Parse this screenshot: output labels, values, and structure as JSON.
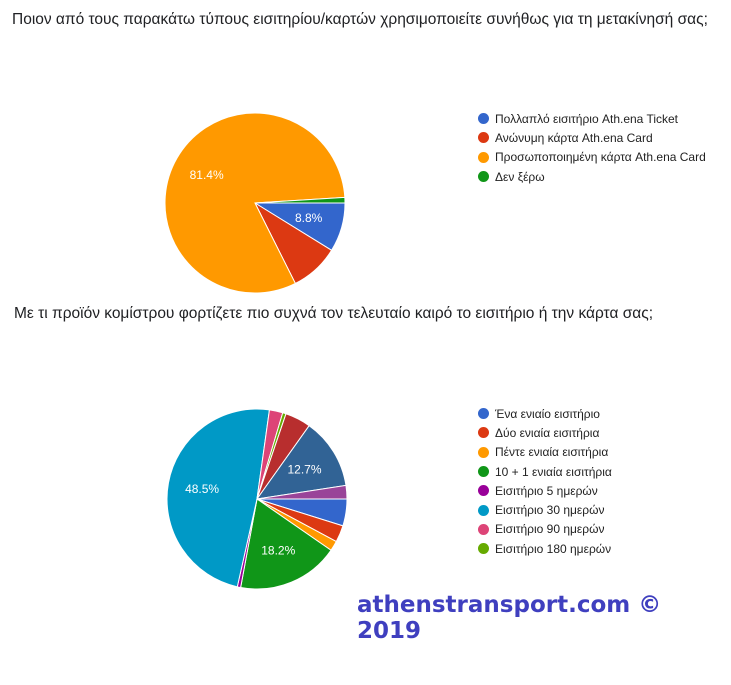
{
  "chart_data": [
    {
      "type": "pie",
      "title": "Ποιον από τους παρακάτω τύπους εισιτηρίου/καρτών χρησιμοποιείτε συνήθως για τη μετακίνησή σας;",
      "legend_position": "right",
      "slices": [
        {
          "name": "Πολλαπλό εισιτήριο Ath.ena Ticket",
          "value": 8.8,
          "label": "8.8%",
          "color": "#3366cc"
        },
        {
          "name": "Ανώνυμη κάρτα Ath.ena Card",
          "value": 8.8,
          "label": "",
          "color": "#dc3912"
        },
        {
          "name": "Προσωποποιημένη κάρτα Ath.ena Card",
          "value": 81.4,
          "label": "81.4%",
          "color": "#ff9900"
        },
        {
          "name": "Δεν ξέρω",
          "value": 1.0,
          "label": "",
          "color": "#109618"
        }
      ]
    },
    {
      "type": "pie",
      "title": "Με τι προϊόν κομίστρου φορτίζετε πιο συχνά τον τελευταίο καιρό το εισιτήριο ή την κάρτα σας;",
      "legend_position": "right",
      "slices": [
        {
          "name": "Ένα ενιαίο εισιτήριο",
          "value": 4.8,
          "label": "",
          "color": "#3366cc"
        },
        {
          "name": "Δύο ενιαία εισιτήρια",
          "value": 3.0,
          "label": "",
          "color": "#dc3912"
        },
        {
          "name": "Πέντε ενιαία εισιτήρια",
          "value": 1.8,
          "label": "",
          "color": "#ff9900"
        },
        {
          "name": "10 + 1 ενιαία εισιτήρια",
          "value": 18.2,
          "label": "18.2%",
          "color": "#109618"
        },
        {
          "name": "Εισιτήριο 5 ημερών",
          "value": 0.6,
          "label": "",
          "color": "#990099"
        },
        {
          "name": "Εισιτήριο 30 ημερών",
          "value": 48.5,
          "label": "48.5%",
          "color": "#0099c6"
        },
        {
          "name": "Εισιτήριο 90 ημερών",
          "value": 2.4,
          "label": "",
          "color": "#dd4477"
        },
        {
          "name": "Εισιτήριο 180 ημερών",
          "value": 0.6,
          "label": "",
          "color": "#66aa00"
        },
        {
          "name": "",
          "value": 4.6,
          "label": "",
          "color": "#b82e2e"
        },
        {
          "name": "",
          "value": 12.7,
          "label": "12.7%",
          "color": "#316395"
        },
        {
          "name": "",
          "value": 2.4,
          "label": "",
          "color": "#994499"
        }
      ]
    }
  ],
  "watermark": "athenstransport.com © 2019"
}
